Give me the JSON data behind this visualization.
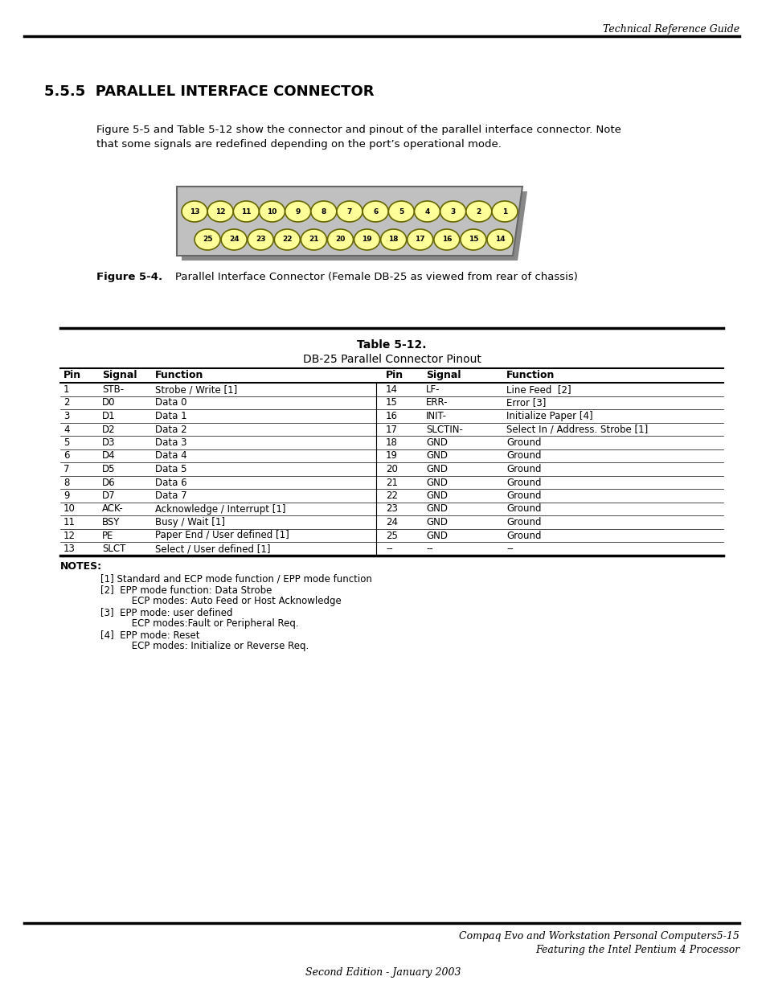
{
  "page_title": "Technical Reference Guide",
  "section_title": "5.5.5  PARALLEL INTERFACE CONNECTOR",
  "intro_text": "Figure 5-5 and Table 5-12 show the connector and pinout of the parallel interface connector. Note\nthat some signals are redefined depending on the port’s operational mode.",
  "connector_row1": [
    13,
    12,
    11,
    10,
    9,
    8,
    7,
    6,
    5,
    4,
    3,
    2,
    1
  ],
  "connector_row2": [
    25,
    24,
    23,
    22,
    21,
    20,
    19,
    18,
    17,
    16,
    15,
    14
  ],
  "table_title1": "Table 5-12.",
  "table_title2": "DB-25 Parallel Connector Pinout",
  "table_headers": [
    "Pin",
    "Signal",
    "Function",
    "Pin",
    "Signal",
    "Function"
  ],
  "table_data_left": [
    [
      "1",
      "STB-",
      "Strobe / Write [1]"
    ],
    [
      "2",
      "D0",
      "Data 0"
    ],
    [
      "3",
      "D1",
      "Data 1"
    ],
    [
      "4",
      "D2",
      "Data 2"
    ],
    [
      "5",
      "D3",
      "Data 3"
    ],
    [
      "6",
      "D4",
      "Data 4"
    ],
    [
      "7",
      "D5",
      "Data 5"
    ],
    [
      "8",
      "D6",
      "Data 6"
    ],
    [
      "9",
      "D7",
      "Data 7"
    ],
    [
      "10",
      "ACK-",
      "Acknowledge / Interrupt [1]"
    ],
    [
      "11",
      "BSY",
      "Busy / Wait [1]"
    ],
    [
      "12",
      "PE",
      "Paper End / User defined [1]"
    ],
    [
      "13",
      "SLCT",
      "Select / User defined [1]"
    ]
  ],
  "table_data_right": [
    [
      "14",
      "LF-",
      "Line Feed  [2]"
    ],
    [
      "15",
      "ERR-",
      "Error [3]"
    ],
    [
      "16",
      "INIT-",
      "Initialize Paper [4]"
    ],
    [
      "17",
      "SLCTIN-",
      "Select In / Address. Strobe [1]"
    ],
    [
      "18",
      "GND",
      "Ground"
    ],
    [
      "19",
      "GND",
      "Ground"
    ],
    [
      "20",
      "GND",
      "Ground"
    ],
    [
      "21",
      "GND",
      "Ground"
    ],
    [
      "22",
      "GND",
      "Ground"
    ],
    [
      "23",
      "GND",
      "Ground"
    ],
    [
      "24",
      "GND",
      "Ground"
    ],
    [
      "25",
      "GND",
      "Ground"
    ],
    [
      "--",
      "--",
      "--"
    ]
  ],
  "notes_title": "NOTES:",
  "notes": [
    "[1] Standard and ECP mode function / EPP mode function",
    "[2]  EPP mode function: Data Strobe",
    "     ECP modes: Auto Feed or Host Acknowledge",
    "[3]  EPP mode: user defined",
    "     ECP modes:Fault or Peripheral Req.",
    "[4]  EPP mode: Reset",
    "     ECP modes: Initialize or Reverse Req."
  ],
  "footer_right1": "Compaq Evo and Workstation Personal Computers5-15",
  "footer_right2": "Featuring the Intel Pentium 4 Processor",
  "footer_center": "Second Edition - January 2003",
  "connector_fill": "#FFFF99",
  "connector_shadow": "#999999",
  "connector_body": "#C0C0C0",
  "connector_edge": "#888888",
  "background": "#FFFFFF"
}
